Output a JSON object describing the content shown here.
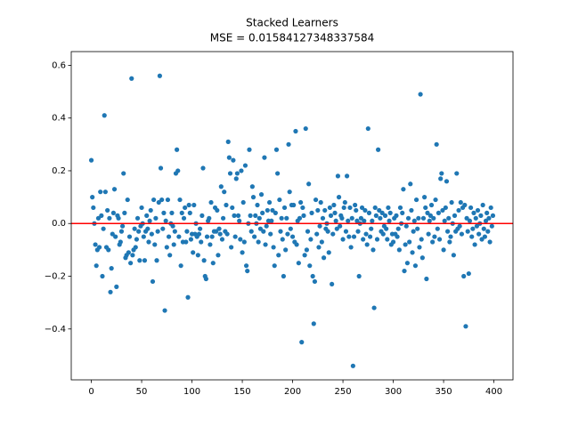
{
  "chart_data": {
    "type": "scatter",
    "title": "Stacked Learners",
    "subtitle": "MSE = 0.01584127348337584",
    "xlim": [
      -19.95,
      418.95
    ],
    "ylim": [
      -0.593,
      0.652
    ],
    "xticks": [
      0,
      50,
      100,
      150,
      200,
      250,
      300,
      350,
      400
    ],
    "yticks": [
      {
        "value": -0.4,
        "label": "−0.4"
      },
      {
        "value": -0.2,
        "label": "−0.2"
      },
      {
        "value": 0,
        "label": "0.0"
      },
      0.2,
      0.4,
      0.6
    ],
    "grid": false,
    "hline": {
      "value": 0,
      "color": "#ff0000"
    },
    "x": [
      0,
      1,
      2,
      3,
      4,
      5,
      6,
      7,
      8,
      9,
      10,
      11,
      12,
      13,
      14,
      15,
      16,
      17,
      18,
      19,
      20,
      21,
      22,
      23,
      24,
      25,
      26,
      27,
      28,
      29,
      30,
      31,
      32,
      33,
      34,
      35,
      36,
      37,
      38,
      39,
      40,
      41,
      42,
      43,
      44,
      45,
      46,
      47,
      48,
      49,
      50,
      51,
      52,
      53,
      54,
      55,
      56,
      57,
      58,
      59,
      60,
      61,
      62,
      63,
      64,
      65,
      66,
      67,
      68,
      69,
      70,
      71,
      72,
      73,
      74,
      75,
      76,
      77,
      78,
      79,
      80,
      81,
      82,
      83,
      84,
      85,
      86,
      87,
      88,
      89,
      90,
      91,
      92,
      93,
      94,
      95,
      96,
      97,
      98,
      99,
      100,
      101,
      102,
      103,
      104,
      105,
      106,
      107,
      108,
      109,
      110,
      111,
      112,
      113,
      114,
      115,
      116,
      117,
      118,
      119,
      120,
      121,
      122,
      123,
      124,
      125,
      126,
      127,
      128,
      129,
      130,
      131,
      132,
      133,
      134,
      135,
      136,
      137,
      138,
      139,
      140,
      141,
      142,
      143,
      144,
      145,
      146,
      147,
      148,
      149,
      150,
      151,
      152,
      153,
      154,
      155,
      156,
      157,
      158,
      159,
      160,
      161,
      162,
      163,
      164,
      165,
      166,
      167,
      168,
      169,
      170,
      171,
      172,
      173,
      174,
      175,
      176,
      177,
      178,
      179,
      180,
      181,
      182,
      183,
      184,
      185,
      186,
      187,
      188,
      189,
      190,
      191,
      192,
      193,
      194,
      195,
      196,
      197,
      198,
      199,
      200,
      201,
      202,
      203,
      204,
      205,
      206,
      207,
      208,
      209,
      210,
      211,
      212,
      213,
      214,
      215,
      216,
      217,
      218,
      219,
      220,
      221,
      222,
      223,
      224,
      225,
      226,
      227,
      228,
      229,
      230,
      231,
      232,
      233,
      234,
      235,
      236,
      237,
      238,
      239,
      240,
      241,
      242,
      243,
      244,
      245,
      246,
      247,
      248,
      249,
      250,
      251,
      252,
      253,
      254,
      255,
      256,
      257,
      258,
      259,
      260,
      261,
      262,
      263,
      264,
      265,
      266,
      267,
      268,
      269,
      270,
      271,
      272,
      273,
      274,
      275,
      276,
      277,
      278,
      279,
      280,
      281,
      282,
      283,
      284,
      285,
      286,
      287,
      288,
      289,
      290,
      291,
      292,
      293,
      294,
      295,
      296,
      297,
      298,
      299,
      300,
      301,
      302,
      303,
      304,
      305,
      306,
      307,
      308,
      309,
      310,
      311,
      312,
      313,
      314,
      315,
      316,
      317,
      318,
      319,
      320,
      321,
      322,
      323,
      324,
      325,
      326,
      327,
      328,
      329,
      330,
      331,
      332,
      333,
      334,
      335,
      336,
      337,
      338,
      339,
      340,
      341,
      342,
      343,
      344,
      345,
      346,
      347,
      348,
      349,
      350,
      351,
      352,
      353,
      354,
      355,
      356,
      357,
      358,
      359,
      360,
      361,
      362,
      363,
      364,
      365,
      366,
      367,
      368,
      369,
      370,
      371,
      372,
      373,
      374,
      375,
      376,
      377,
      378,
      379,
      380,
      381,
      382,
      383,
      384,
      385,
      386,
      387,
      388,
      389,
      390,
      391,
      392,
      393,
      394,
      395,
      396,
      397,
      398,
      399
    ],
    "series": [
      {
        "color": "#1f77b4",
        "values": [
          0.24,
          0.1,
          0.06,
          0.0,
          -0.08,
          -0.16,
          -0.1,
          0.02,
          -0.09,
          0.12,
          0.03,
          -0.2,
          -0.02,
          0.41,
          0.12,
          -0.09,
          0.05,
          -0.1,
          0.02,
          -0.26,
          -0.17,
          -0.04,
          0.04,
          0.13,
          -0.05,
          -0.24,
          0.03,
          0.02,
          -0.08,
          -0.07,
          -0.03,
          -0.01,
          0.19,
          0.04,
          -0.13,
          -0.12,
          0.09,
          -0.11,
          -0.05,
          -0.15,
          0.55,
          -0.12,
          -0.1,
          -0.02,
          -0.09,
          -0.06,
          0.02,
          -0.03,
          -0.14,
          -0.01,
          0.06,
          0.0,
          -0.05,
          -0.14,
          -0.03,
          0.03,
          -0.02,
          -0.07,
          0.01,
          0.05,
          -0.04,
          -0.22,
          0.09,
          -0.08,
          0.02,
          -0.14,
          -0.03,
          0.08,
          0.56,
          0.21,
          0.09,
          -0.02,
          0.04,
          -0.33,
          0.01,
          -0.09,
          0.09,
          -0.05,
          -0.12,
          0.0,
          0.04,
          -0.01,
          -0.08,
          -0.03,
          0.19,
          0.28,
          0.2,
          -0.05,
          0.09,
          -0.16,
          0.04,
          -0.07,
          0.02,
          0.06,
          -0.07,
          -0.03,
          -0.28,
          0.07,
          0.04,
          -0.06,
          -0.04,
          -0.11,
          0.07,
          -0.04,
          0.0,
          -0.05,
          -0.12,
          -0.04,
          -0.02,
          -0.07,
          0.03,
          0.21,
          -0.14,
          -0.2,
          -0.21,
          -0.05,
          0.01,
          0.02,
          -0.08,
          0.08,
          -0.05,
          -0.15,
          -0.03,
          0.06,
          -0.03,
          0.05,
          -0.12,
          -0.02,
          -0.04,
          0.14,
          -0.06,
          0.02,
          0.12,
          -0.03,
          0.07,
          -0.04,
          0.31,
          0.25,
          0.19,
          -0.09,
          0.06,
          0.24,
          0.03,
          -0.05,
          0.17,
          0.19,
          0.03,
          0.01,
          -0.06,
          0.2,
          -0.11,
          0.08,
          -0.07,
          0.22,
          -0.16,
          -0.18,
          0.0,
          0.28,
          0.03,
          -0.03,
          0.14,
          0.1,
          -0.05,
          0.03,
          0.0,
          0.07,
          -0.07,
          0.02,
          -0.02,
          0.11,
          0.04,
          -0.03,
          0.25,
          -0.08,
          -0.01,
          0.05,
          0.01,
          0.08,
          -0.04,
          0.01,
          0.05,
          -0.09,
          -0.16,
          0.04,
          0.28,
          0.19,
          -0.12,
          0.09,
          -0.03,
          0.02,
          -0.06,
          -0.2,
          0.06,
          -0.1,
          0.02,
          -0.04,
          0.3,
          0.12,
          -0.02,
          0.07,
          -0.05,
          0.07,
          -0.07,
          0.35,
          -0.08,
          0.01,
          -0.15,
          0.02,
          0.08,
          -0.45,
          0.06,
          0.03,
          -0.12,
          0.36,
          -0.1,
          -0.03,
          0.15,
          -0.16,
          -0.06,
          0.04,
          -0.2,
          -0.38,
          -0.22,
          0.09,
          -0.04,
          0.05,
          -0.09,
          -0.01,
          0.08,
          -0.07,
          0.02,
          -0.13,
          0.05,
          -0.02,
          0.0,
          -0.03,
          -0.11,
          0.06,
          0.03,
          -0.23,
          -0.04,
          0.07,
          0.04,
          0.01,
          -0.02,
          0.18,
          0.1,
          -0.01,
          0.03,
          0.02,
          -0.06,
          0.06,
          0.08,
          -0.03,
          0.18,
          0.01,
          -0.05,
          0.06,
          -0.09,
          0.02,
          -0.54,
          -0.05,
          0.07,
          0.05,
          0.01,
          -0.03,
          -0.2,
          0.0,
          0.02,
          0.06,
          -0.06,
          0.01,
          0.05,
          -0.04,
          -0.08,
          0.36,
          0.04,
          -0.05,
          -0.02,
          0.01,
          -0.1,
          -0.32,
          0.06,
          0.03,
          -0.06,
          0.28,
          0.05,
          0.02,
          -0.03,
          0.04,
          -0.04,
          -0.01,
          0.03,
          -0.02,
          -0.06,
          0.06,
          0.01,
          0.04,
          -0.08,
          -0.04,
          -0.07,
          0.02,
          -0.04,
          0.03,
          -0.05,
          -0.02,
          -0.1,
          0.06,
          0.0,
          0.04,
          0.13,
          -0.18,
          -0.08,
          -0.01,
          -0.15,
          0.02,
          -0.07,
          0.15,
          0.05,
          -0.11,
          -0.03,
          0.01,
          -0.16,
          0.09,
          -0.02,
          0.02,
          -0.09,
          0.49,
          -0.06,
          -0.13,
          0.02,
          0.1,
          0.06,
          -0.21,
          0.04,
          -0.04,
          0.01,
          0.03,
          0.07,
          -0.07,
          0.02,
          -0.05,
          0.09,
          0.3,
          -0.02,
          0.04,
          -0.06,
          0.17,
          0.19,
          0.05,
          -0.1,
          0.01,
          0.06,
          0.16,
          -0.03,
          0.02,
          -0.07,
          -0.05,
          0.08,
          0.0,
          -0.12,
          0.03,
          -0.03,
          0.19,
          -0.02,
          0.05,
          -0.01,
          0.08,
          -0.04,
          0.06,
          -0.2,
          0.07,
          -0.39,
          0.02,
          -0.03,
          -0.19,
          0.01,
          0.06,
          -0.05,
          -0.02,
          0.04,
          -0.08,
          0.02,
          -0.01,
          0.05,
          -0.04,
          0.0,
          0.03,
          -0.06,
          0.07,
          -0.02,
          -0.05,
          0.01,
          0.04,
          -0.03,
          0.02,
          -0.07,
          0.06,
          -0.01,
          0.03
        ]
      }
    ]
  }
}
